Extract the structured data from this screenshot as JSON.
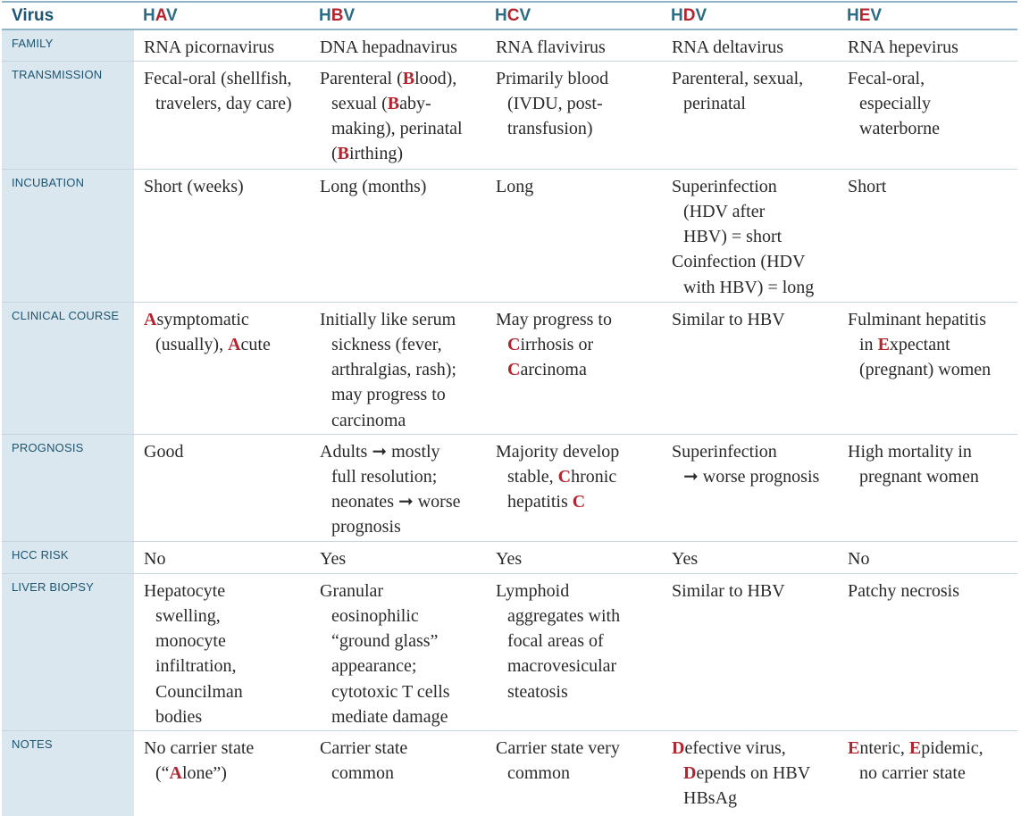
{
  "header": {
    "first": "Virus",
    "viruses": [
      {
        "prefix": "H",
        "letter": "A",
        "suffix": "V"
      },
      {
        "prefix": "H",
        "letter": "B",
        "suffix": "V"
      },
      {
        "prefix": "H",
        "letter": "C",
        "suffix": "V"
      },
      {
        "prefix": "H",
        "letter": "D",
        "suffix": "V"
      },
      {
        "prefix": "H",
        "letter": "E",
        "suffix": "V"
      }
    ]
  },
  "rows": {
    "family": {
      "label": "FAMILY",
      "cells": [
        "RNA picornavirus",
        "DNA hepadnavirus",
        "RNA flavivirus",
        "RNA deltavirus",
        "RNA hepevirus"
      ]
    },
    "transmission": {
      "label": "TRANSMISSION",
      "hav": [
        "Fecal-oral (shellfish,",
        "travelers, day care)"
      ],
      "hbv": [
        "Parenteral (",
        "B",
        "lood),",
        "sexual (",
        "B",
        "aby-",
        "making), perinatal",
        "(",
        "B",
        "irthing)"
      ],
      "hcv": [
        "Primarily blood",
        "(IVDU, post-",
        "transfusion)"
      ],
      "hdv": [
        "Parenteral, sexual,",
        "perinatal"
      ],
      "hev": [
        "Fecal-oral,",
        "especially",
        "waterborne"
      ]
    },
    "incubation": {
      "label": "INCUBATION",
      "hav": "Short (weeks)",
      "hbv": "Long (months)",
      "hcv": "Long",
      "hdv": [
        "Superinfection",
        "(HDV after",
        "HBV) = short",
        "Coinfection (HDV",
        "with HBV) = long"
      ],
      "hev": "Short"
    },
    "clinical": {
      "label": "CLINICAL COURSE",
      "hav": [
        "A",
        "symptomatic",
        "(usually), ",
        "A",
        "cute"
      ],
      "hbv": [
        "Initially like serum",
        "sickness (fever,",
        "arthralgias, rash);",
        "may progress to",
        "carcinoma"
      ],
      "hcv": [
        "May progress to",
        "C",
        "irrhosis or",
        "C",
        "arcinoma"
      ],
      "hdv": "Similar to HBV",
      "hev": [
        "Fulminant hepatitis",
        "in ",
        "E",
        "xpectant",
        "(pregnant) women"
      ]
    },
    "prognosis": {
      "label": "PROGNOSIS",
      "hav": "Good",
      "hbv": [
        "Adults ➞ mostly",
        "full resolution;",
        "neonates ➞ worse",
        "prognosis"
      ],
      "hcv": [
        "Majority develop",
        "stable, ",
        "C",
        "hronic",
        "hepatitis ",
        "C"
      ],
      "hdv": [
        "Superinfection",
        "➞ worse prognosis"
      ],
      "hev": [
        "High mortality in",
        "pregnant women"
      ]
    },
    "hcc": {
      "label": "HCC RISK",
      "cells": [
        "No",
        "Yes",
        "Yes",
        "Yes",
        "No"
      ]
    },
    "biopsy": {
      "label": "LIVER BIOPSY",
      "hav": [
        "Hepatocyte",
        "swelling,",
        "monocyte",
        "infiltration,",
        "Councilman",
        "bodies"
      ],
      "hbv": [
        "Granular",
        "eosinophilic",
        "“ground glass”",
        "appearance;",
        "cytotoxic T cells",
        "mediate damage"
      ],
      "hcv": [
        "Lymphoid",
        "aggregates with",
        "focal areas of",
        "macrovesicular",
        "steatosis"
      ],
      "hdv": "Similar to HBV",
      "hev": "Patchy necrosis"
    },
    "notes": {
      "label": "NOTES",
      "hav": [
        "No carrier state",
        "(“",
        "A",
        "lone”)"
      ],
      "hbv": [
        "Carrier state",
        "common"
      ],
      "hcv": [
        "Carrier state very",
        "common"
      ],
      "hdv": [
        "D",
        "efective virus,",
        "D",
        "epends on HBV",
        "HBsAg"
      ],
      "hev": [
        "E",
        "nteric, ",
        "E",
        "pidemic,",
        "no carrier state"
      ]
    }
  }
}
